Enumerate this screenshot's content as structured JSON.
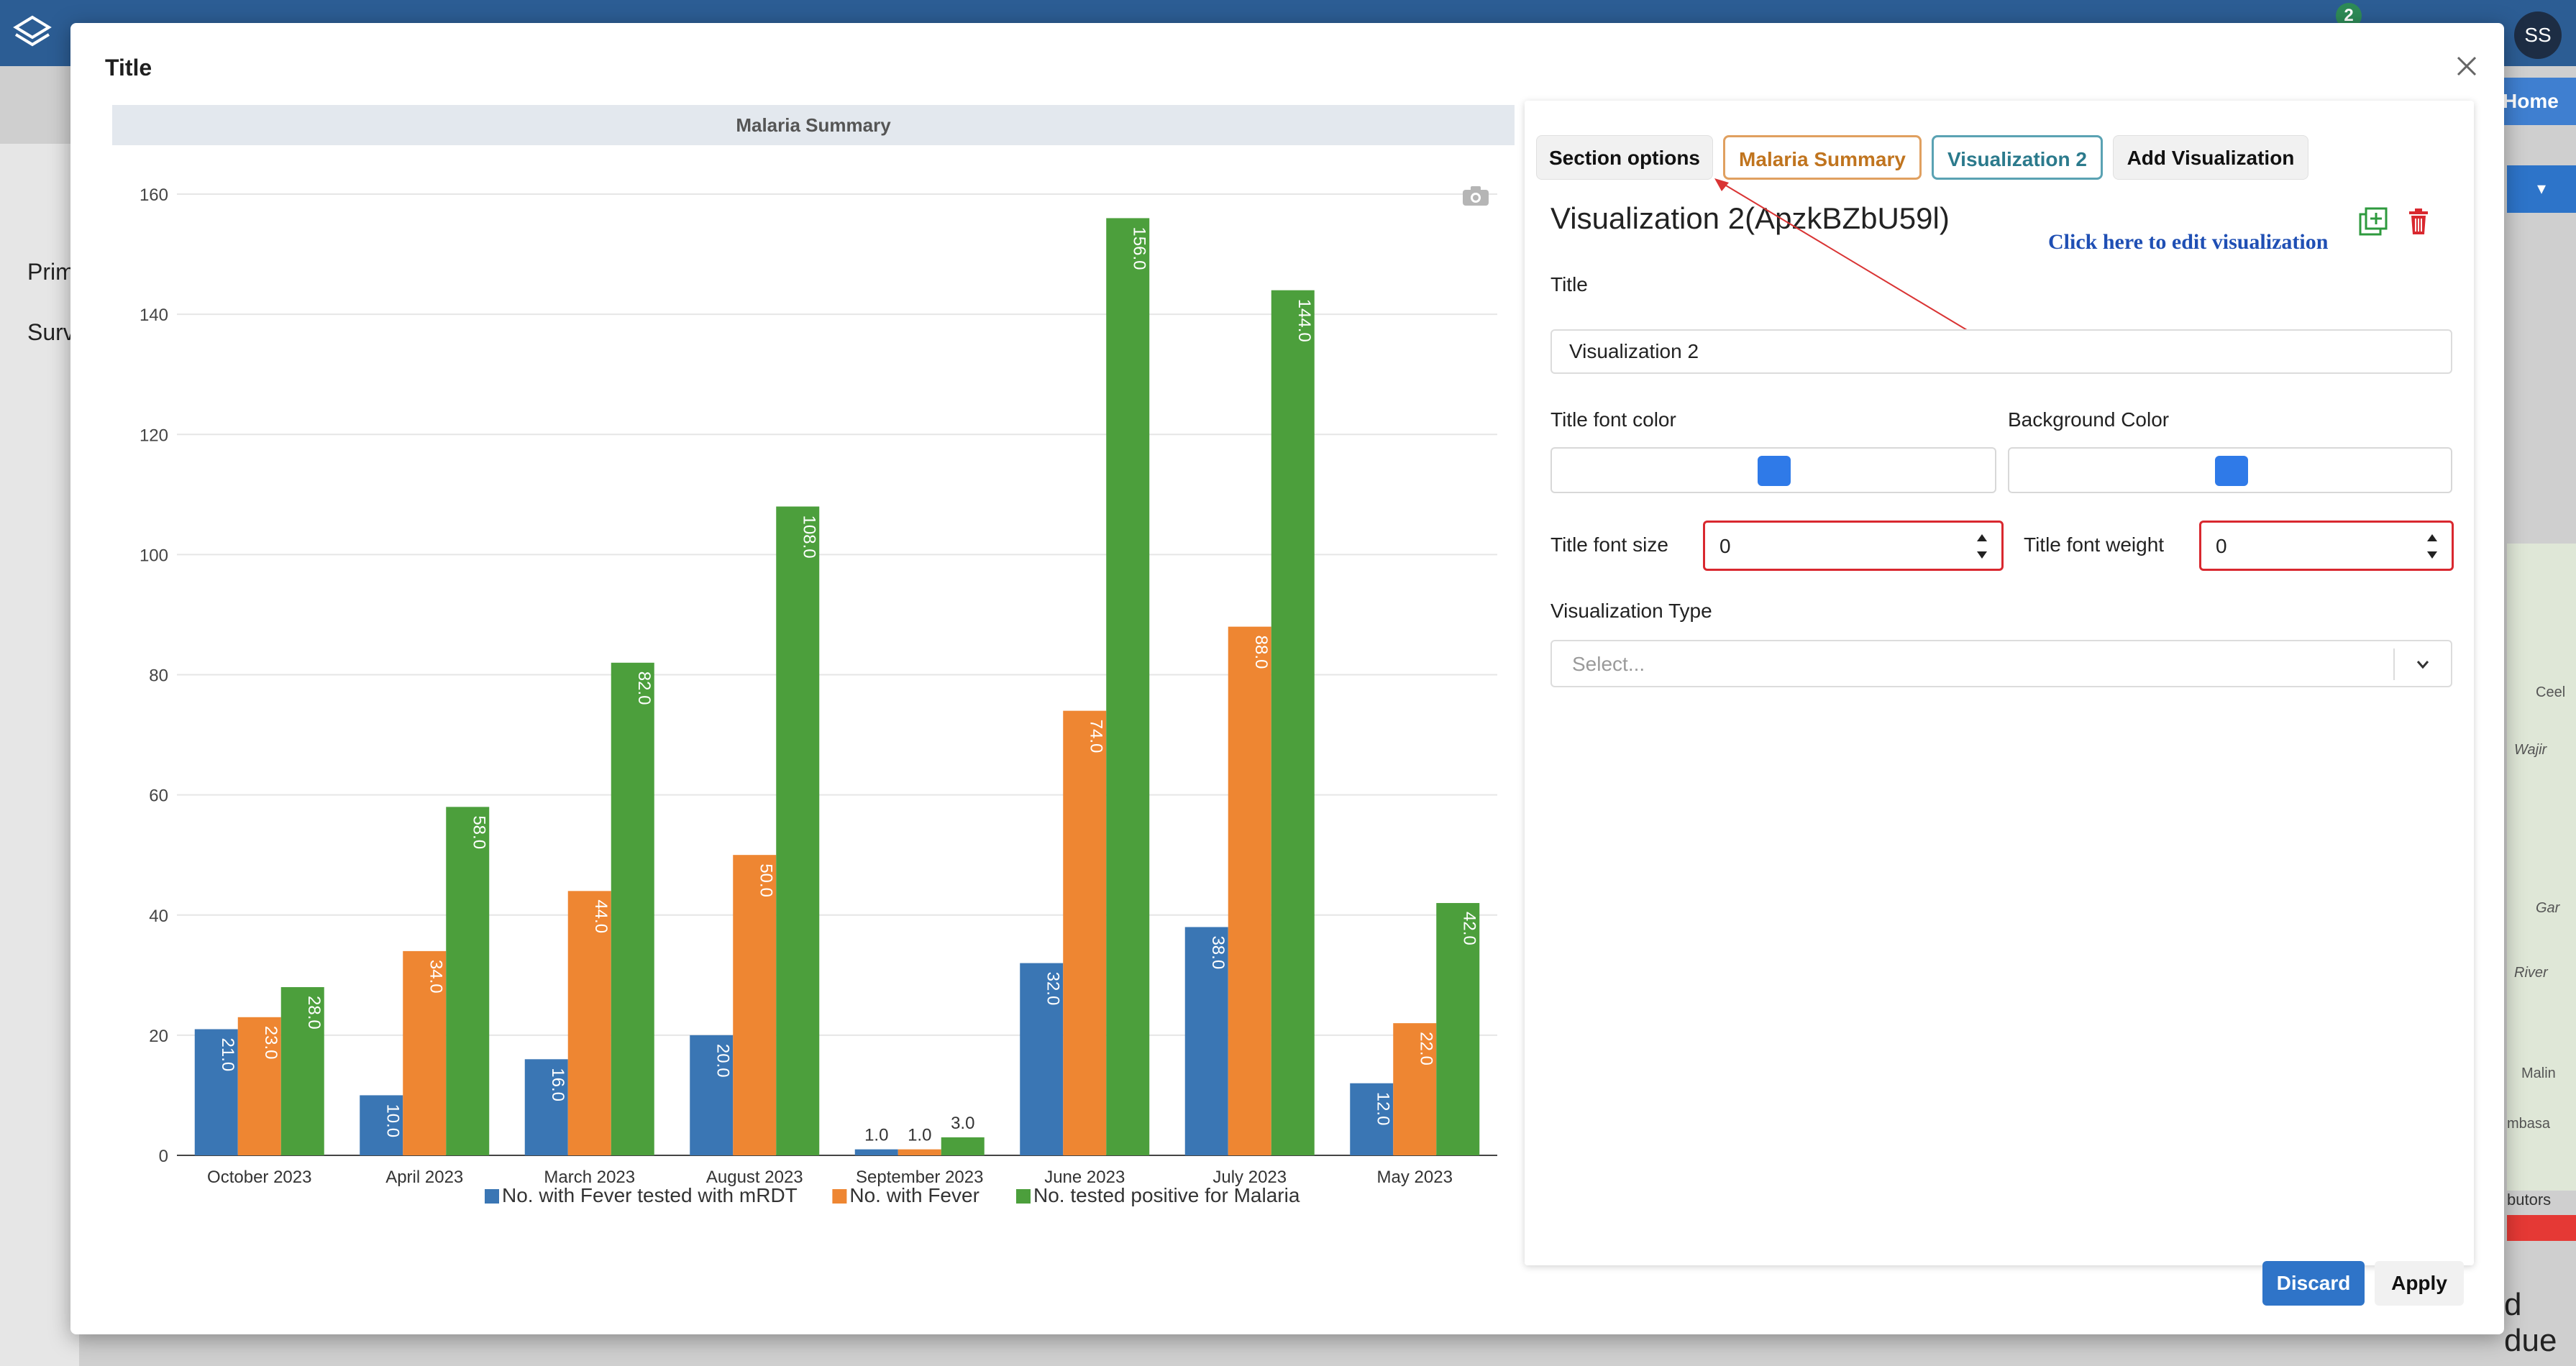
{
  "app": {
    "notification_count": "2",
    "avatar_initials": "SS",
    "home_label": "Home",
    "left_items": [
      "Prim",
      "Surv"
    ],
    "map_labels": [
      "Ceel",
      "Wajir",
      "Gar",
      "River",
      "Malin",
      "mbasa"
    ],
    "contributors_text": "butors",
    "due_text": "d due"
  },
  "modal": {
    "title": "Title",
    "chart_header": "Malaria Summary",
    "tabs": [
      "Section options",
      "Malaria Summary",
      "Visualization 2",
      "Add Visualization"
    ],
    "vis_heading": "Visualization 2(ApzkBZbU59l)",
    "annotation": "Click here to edit visualization",
    "title_label": "Title",
    "title_value": "Visualization 2",
    "title_font_color_label": "Title font color",
    "background_color_label": "Background Color",
    "title_font_color": "#2f7ae8",
    "background_color": "#2f7ae8",
    "title_font_size_label": "Title font size",
    "title_font_size_value": "0",
    "title_font_weight_label": "Title font weight",
    "title_font_weight_value": "0",
    "vis_type_label": "Visualization Type",
    "vis_type_placeholder": "Select...",
    "discard_label": "Discard",
    "apply_label": "Apply"
  },
  "chart_data": {
    "type": "bar",
    "title": "Malaria Summary",
    "categories": [
      "October 2023",
      "April 2023",
      "March 2023",
      "August 2023",
      "September 2023",
      "June 2023",
      "July 2023",
      "May 2023"
    ],
    "series": [
      {
        "name": "No. with Fever tested with mRDT",
        "color": "#3a76b4",
        "values": [
          21,
          10,
          16,
          20,
          1,
          32,
          38,
          12
        ]
      },
      {
        "name": "No. with Fever",
        "color": "#ee8632",
        "values": [
          23,
          34,
          44,
          50,
          1,
          74,
          88,
          22
        ]
      },
      {
        "name": "No. tested positive for Malaria",
        "color": "#4c9f3c",
        "values": [
          28,
          58,
          82,
          108,
          3,
          156,
          144,
          42
        ]
      }
    ],
    "yticks": [
      0,
      20,
      40,
      60,
      80,
      100,
      120,
      140,
      160
    ],
    "ylim": [
      0,
      160
    ],
    "grid": true,
    "legend": "bottom-center"
  }
}
